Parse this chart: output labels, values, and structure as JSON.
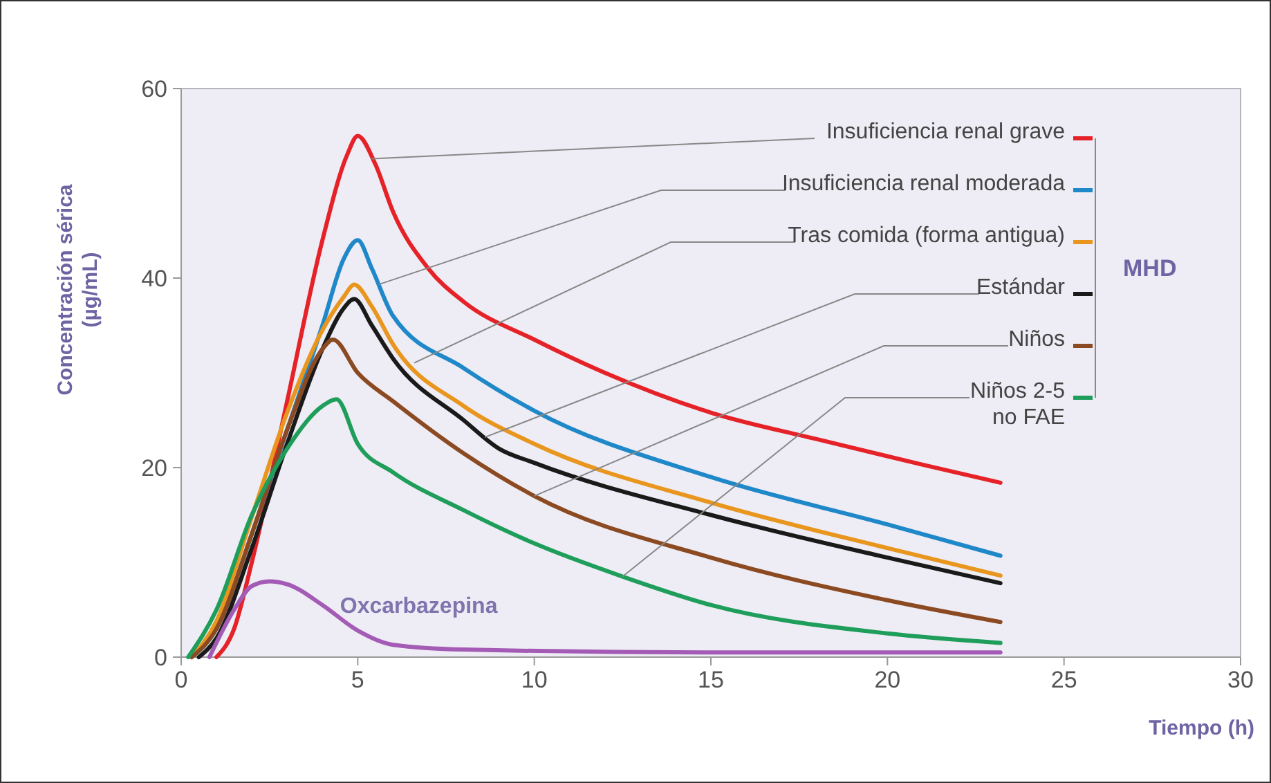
{
  "chart_data": {
    "type": "line",
    "xlabel": "Tiempo (h)",
    "ylabel": "Concentración sérica\n(µg/mL)",
    "xlim": [
      0,
      30
    ],
    "xticks": [
      0,
      5,
      10,
      15,
      20,
      25,
      30
    ],
    "ylim": [
      0,
      60
    ],
    "yticks": [
      0,
      20,
      40,
      60
    ],
    "grid": false,
    "legend": "right",
    "marker": "none",
    "line_style": "solid",
    "annotations": [
      "MHD"
    ],
    "series": [
      {
        "name": "Insuficiencia renal grave",
        "color": "#e52228",
        "x": [
          1,
          1.5,
          2,
          3,
          4,
          4.7,
          5,
          5.5,
          6,
          7,
          8,
          10,
          12,
          15,
          18,
          21,
          23.2
        ],
        "values": [
          0,
          3,
          10,
          27,
          44,
          53,
          55,
          52,
          47,
          41,
          37.5,
          33.5,
          30,
          25.8,
          23,
          20.3,
          18.4
        ]
      },
      {
        "name": "Insuficiencia renal moderada",
        "color": "#1f88c9",
        "x": [
          0.3,
          1,
          2,
          3,
          4,
          4.6,
          5,
          5.4,
          6,
          8,
          10,
          15,
          20,
          23.2
        ],
        "values": [
          0,
          3,
          13,
          24,
          35,
          42,
          44,
          41,
          36,
          30.5,
          26,
          19,
          14,
          10.7
        ]
      },
      {
        "name": "Tras comida (forma antigua)",
        "color": "#e8961e",
        "x": [
          0.3,
          1,
          2,
          3,
          4,
          4.6,
          4.9,
          5.4,
          6,
          8,
          10,
          15,
          20,
          23.2
        ],
        "values": [
          0,
          3.8,
          14.8,
          25.8,
          34.5,
          38,
          39.3,
          37,
          33,
          26.5,
          22.5,
          16.3,
          11.5,
          8.6
        ]
      },
      {
        "name": "Estándar",
        "color": "#1a1a1a",
        "x": [
          0.5,
          1,
          2,
          3,
          4,
          4.6,
          4.9,
          5.4,
          6,
          8,
          9,
          10,
          15,
          20,
          23.2
        ],
        "values": [
          0,
          2,
          11.5,
          22.5,
          32.5,
          36.8,
          37.8,
          35,
          31.5,
          25,
          22,
          20.5,
          15,
          10.5,
          7.8
        ]
      },
      {
        "name": "Niños",
        "color": "#8b4a22",
        "x": [
          0.3,
          1,
          2,
          3,
          4,
          4.3,
          5,
          6,
          8,
          10,
          15,
          20,
          23.2
        ],
        "values": [
          0,
          3,
          13,
          24,
          32.5,
          33.5,
          30,
          27,
          21.5,
          17,
          10.5,
          6,
          3.7
        ]
      },
      {
        "name": "Niños 2-5\nno FAE",
        "color": "#1e9e5a",
        "x": [
          0.2,
          1,
          2,
          3,
          4,
          4.4,
          5,
          6,
          8,
          10,
          12.5,
          15,
          20,
          23.2
        ],
        "values": [
          0,
          5,
          15,
          22,
          26.5,
          27.2,
          22.5,
          19.5,
          15.5,
          12,
          8.5,
          5.5,
          2.5,
          1.5
        ]
      },
      {
        "name": "Oxcarbazepina",
        "color": "#a35bb5",
        "x": [
          0.8,
          1.5,
          2,
          2.5,
          3,
          4,
          5,
          6,
          8,
          15,
          23.2
        ],
        "values": [
          0,
          5,
          7.5,
          8,
          7.7,
          5.5,
          2.8,
          1.3,
          0.8,
          0.5,
          0.5
        ]
      }
    ]
  }
}
